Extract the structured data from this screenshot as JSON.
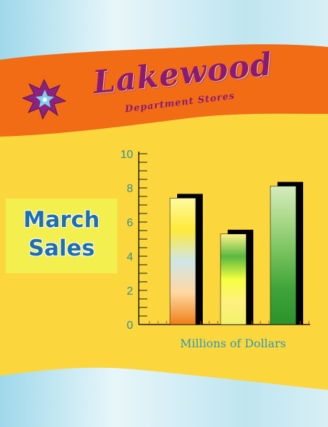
{
  "brand": {
    "name": "Lakewood",
    "subtitle": "Department Stores"
  },
  "promo": {
    "line1": "March",
    "line2": "Sales"
  },
  "chart_data": {
    "type": "bar",
    "categories": [
      "",
      "",
      ""
    ],
    "values": [
      7.4,
      5.3,
      8.1
    ],
    "bar_gradients": [
      [
        "#fffaa0",
        "#ffe93a",
        "#cfe6e8",
        "#ffd8a0",
        "#f07e18"
      ],
      [
        "#fff38a",
        "#5ab840",
        "#f5ff40",
        "#fff080",
        "#f2f26a"
      ],
      [
        "#d4ecbf",
        "#a8d888",
        "#73c05a",
        "#3ea33a",
        "#2e922c"
      ]
    ],
    "title": "",
    "xlabel": "Millions of Dollars",
    "ylabel": "",
    "ylim": [
      0,
      10
    ],
    "yticks": [
      0,
      2,
      4,
      6,
      8,
      10
    ],
    "grid": false,
    "colors": {
      "axis": "#1a1a1a",
      "tick_label": "#2b8f9c",
      "shadow": "#000000"
    }
  },
  "colors": {
    "banner": "#f26b15",
    "panel": "#fcd63d",
    "sky": "#cdeaf2",
    "brand_text": "#8a1a78",
    "promo_text": "#1d6fb0"
  }
}
